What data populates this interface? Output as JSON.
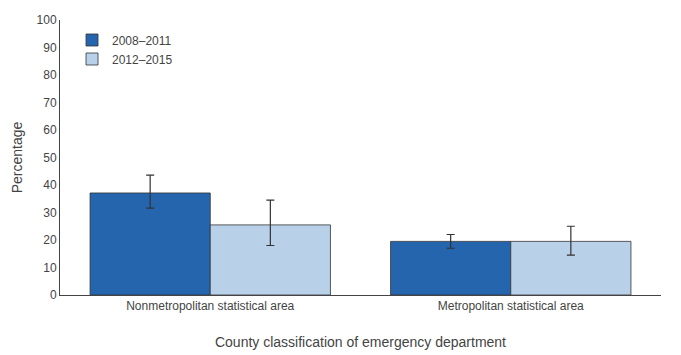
{
  "chart_data": {
    "type": "bar",
    "categories": [
      "Nonmetropolitan statistical area",
      "Metropolitan statistical area"
    ],
    "series": [
      {
        "name": "2008–2011",
        "color": "#2565AE",
        "values": [
          37.1,
          19.5
        ],
        "error_low": [
          5.5,
          2.5
        ],
        "error_high": [
          6.5,
          2.5
        ]
      },
      {
        "name": "2012–2015",
        "color": "#B8D0E8",
        "values": [
          25.5,
          19.5
        ],
        "error_low": [
          7.5,
          5.0
        ],
        "error_high": [
          9.0,
          5.5
        ]
      }
    ],
    "ylabel": "Percentage",
    "xlabel": "County classification of emergency department",
    "ylim": [
      0,
      100
    ],
    "yticks": [
      0,
      10,
      20,
      30,
      40,
      50,
      60,
      70,
      80,
      90,
      100
    ],
    "grid": false,
    "legend": "upper left"
  }
}
